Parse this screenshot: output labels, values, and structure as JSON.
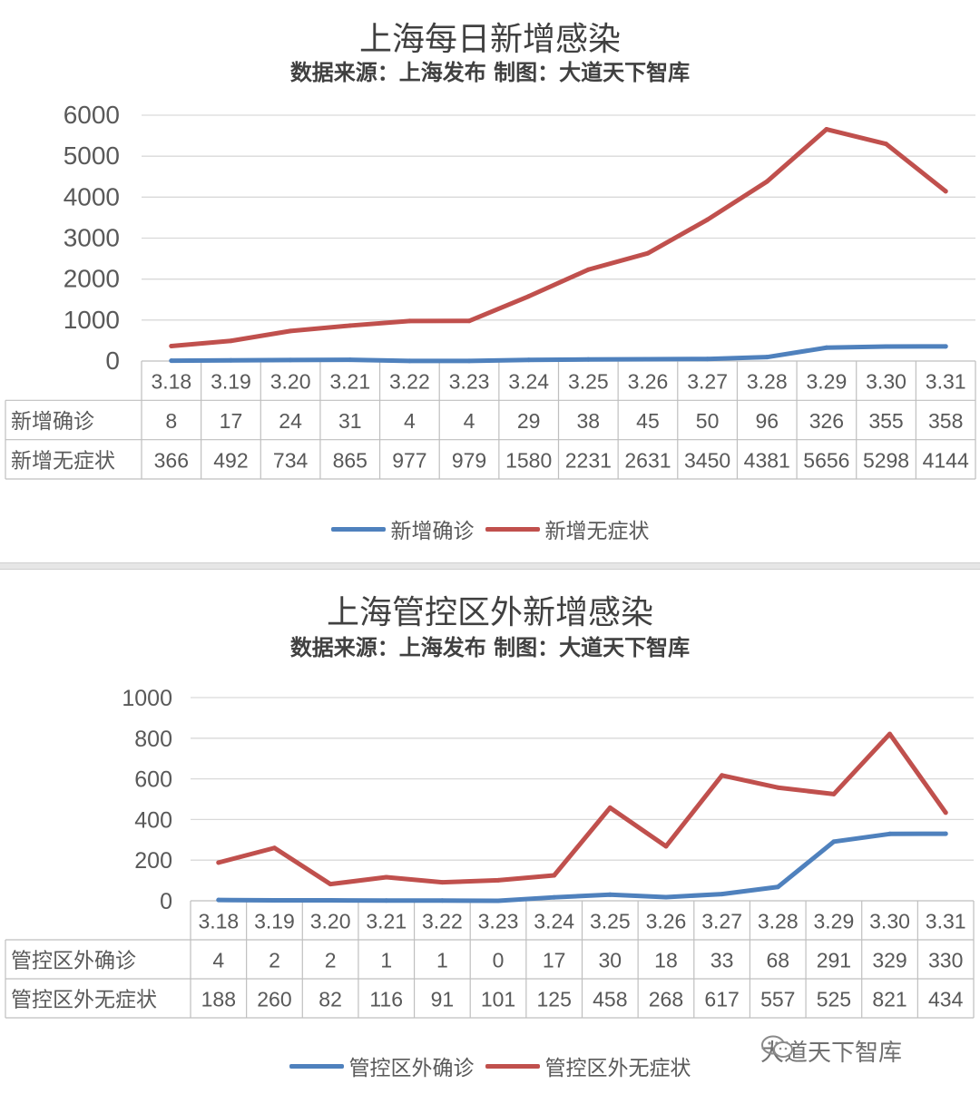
{
  "charts": [
    {
      "title": "上海每日新增感染",
      "subtitle": "数据来源：上海发布 制图：大道天下智库",
      "chart_data": {
        "type": "line",
        "title": "上海每日新增感染",
        "subtitle": "数据来源：上海发布 制图：大道天下智库",
        "categories": [
          "3.18",
          "3.19",
          "3.20",
          "3.21",
          "3.22",
          "3.23",
          "3.24",
          "3.25",
          "3.26",
          "3.27",
          "3.28",
          "3.29",
          "3.30",
          "3.31"
        ],
        "series": [
          {
            "name": "新增确诊",
            "color": "#4f81bd",
            "values": [
              8,
              17,
              24,
              31,
              4,
              4,
              29,
              38,
              45,
              50,
              96,
              326,
              355,
              358
            ]
          },
          {
            "name": "新增无症状",
            "color": "#c0504d",
            "values": [
              366,
              492,
              734,
              865,
              977,
              979,
              1580,
              2231,
              2631,
              3450,
              4381,
              5656,
              5298,
              4144
            ]
          }
        ],
        "yticks": [
          "0",
          "1000",
          "2000",
          "3000",
          "4000",
          "5000",
          "6000"
        ],
        "ylim": [
          0,
          6000
        ],
        "grid": true,
        "data_table": true,
        "legend_position": "bottom"
      }
    },
    {
      "title": "上海管控区外新增感染",
      "subtitle": "数据来源：上海发布 制图：大道天下智库",
      "chart_data": {
        "type": "line",
        "title": "上海管控区外新增感染",
        "subtitle": "数据来源：上海发布 制图：大道天下智库",
        "categories": [
          "3.18",
          "3.19",
          "3.20",
          "3.21",
          "3.22",
          "3.23",
          "3.24",
          "3.25",
          "3.26",
          "3.27",
          "3.28",
          "3.29",
          "3.30",
          "3.31"
        ],
        "series": [
          {
            "name": "管控区外确诊",
            "color": "#4f81bd",
            "values": [
              4,
              2,
              2,
              1,
              1,
              0,
              17,
              30,
              18,
              33,
              68,
              291,
              329,
              330
            ]
          },
          {
            "name": "管控区外无症状",
            "color": "#c0504d",
            "values": [
              188,
              260,
              82,
              116,
              91,
              101,
              125,
              458,
              268,
              617,
              557,
              525,
              821,
              434
            ]
          }
        ],
        "yticks": [
          "0",
          "200",
          "400",
          "600",
          "800",
          "1000"
        ],
        "ylim": [
          0,
          1000
        ],
        "grid": true,
        "data_table": true,
        "legend_position": "bottom"
      }
    }
  ],
  "watermark": {
    "text": "大道天下智库",
    "icon": "wechat-icon"
  }
}
